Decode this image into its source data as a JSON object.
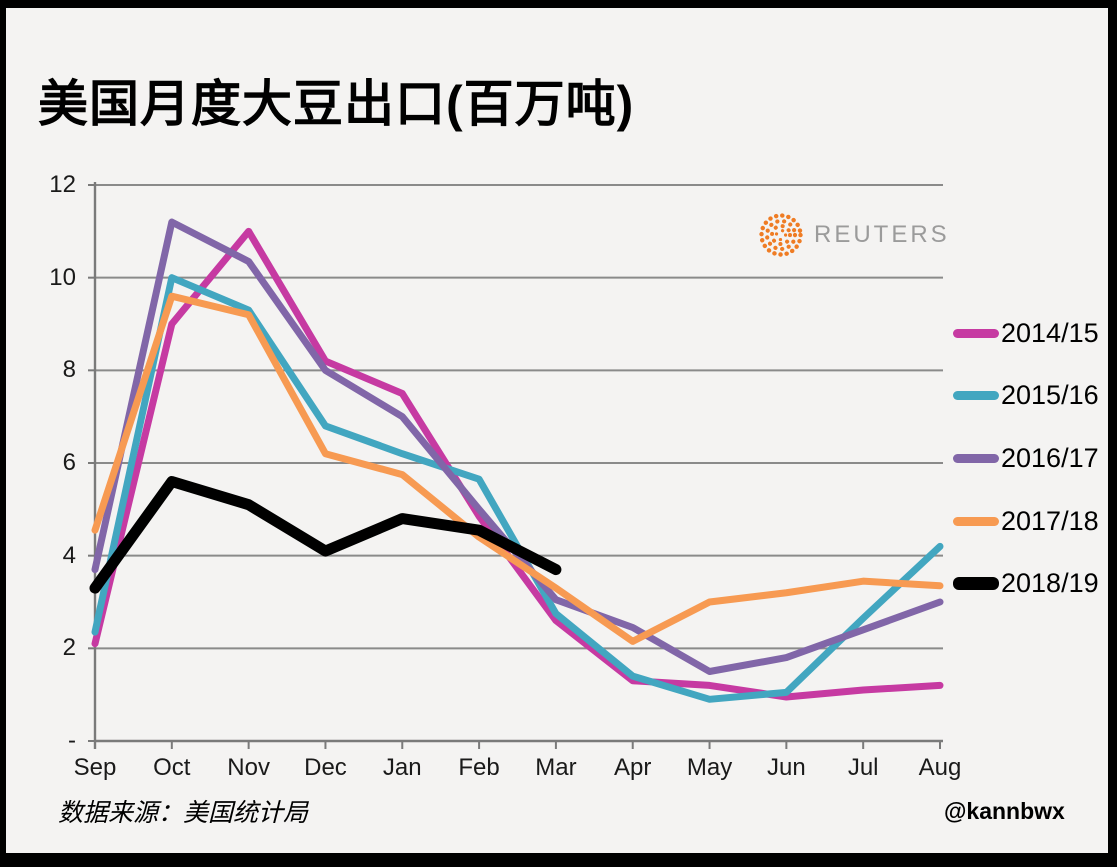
{
  "title": "美国月度大豆出口(百万吨)",
  "branding": {
    "logo_text": "REUTERS",
    "orb_color": "#ef7c24",
    "text_color": "#9b9b9b"
  },
  "footer": {
    "source": "数据来源：美国统计局",
    "handle": "@kannbwx"
  },
  "colors": {
    "background": "#f4f3f2",
    "border": "#000000",
    "grid": "#8a8a8a",
    "axis": "#7a7a7a",
    "axis_text": "#1a1a1a"
  },
  "chart_data": {
    "type": "line",
    "title": "美国月度大豆出口(百万吨)",
    "xlabel": "",
    "ylabel": "",
    "categories": [
      "Sep",
      "Oct",
      "Nov",
      "Dec",
      "Jan",
      "Feb",
      "Mar",
      "Apr",
      "May",
      "Jun",
      "Jul",
      "Aug"
    ],
    "series": [
      {
        "name": "2014/15",
        "color": "#c63aa2",
        "width": 7,
        "values": [
          2.1,
          9.0,
          11.0,
          8.2,
          7.5,
          4.85,
          2.6,
          1.3,
          1.2,
          0.95,
          1.1,
          1.2
        ]
      },
      {
        "name": "2015/16",
        "color": "#42a6c0",
        "width": 7,
        "values": [
          2.35,
          10.0,
          9.3,
          6.8,
          6.2,
          5.65,
          2.75,
          1.4,
          0.9,
          1.05,
          2.65,
          4.2
        ]
      },
      {
        "name": "2016/17",
        "color": "#8166a8",
        "width": 7,
        "values": [
          3.7,
          11.2,
          10.35,
          8.0,
          7.0,
          5.0,
          3.05,
          2.45,
          1.5,
          1.8,
          2.4,
          3.0
        ]
      },
      {
        "name": "2017/18",
        "color": "#f79a52",
        "width": 7,
        "values": [
          4.55,
          9.6,
          9.2,
          6.2,
          5.75,
          4.4,
          3.3,
          2.15,
          3.0,
          3.2,
          3.45,
          3.35
        ]
      },
      {
        "name": "2018/19",
        "color": "#000000",
        "width": 11,
        "values": [
          3.3,
          5.6,
          5.1,
          4.1,
          4.8,
          4.55,
          3.7
        ]
      }
    ],
    "ylim": [
      0,
      12
    ],
    "ytick_values": [
      12,
      10,
      8,
      6,
      4,
      2,
      0
    ],
    "ytick_labels": [
      "12",
      "10",
      "8",
      "6",
      "4",
      "2",
      "-"
    ],
    "grid": true,
    "legend_position": "right"
  }
}
